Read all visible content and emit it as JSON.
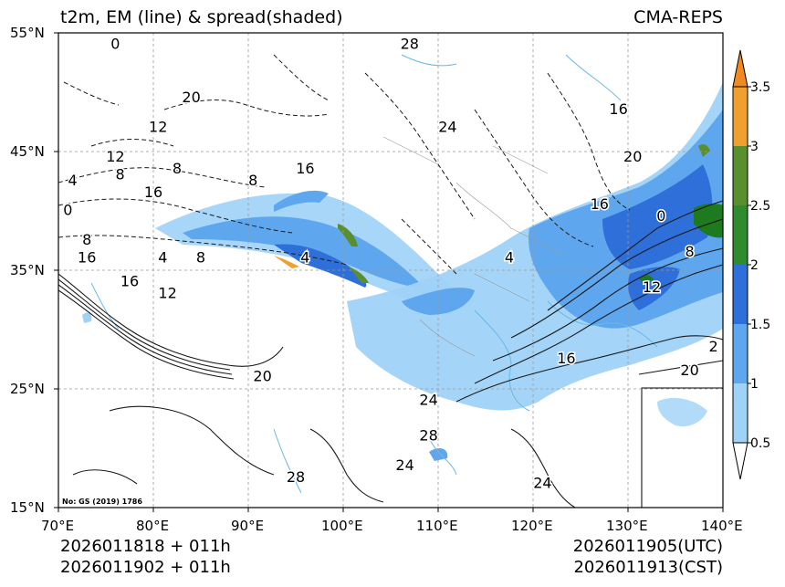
{
  "title": {
    "left": "t2m, EM (line) & spread(shaded)",
    "right": "CMA-REPS"
  },
  "axes": {
    "lat_labels": [
      "55°N",
      "45°N",
      "35°N",
      "25°N",
      "15°N"
    ],
    "lon_labels": [
      "70°E",
      "80°E",
      "90°E",
      "100°E",
      "110°E",
      "120°E",
      "130°E",
      "140°E"
    ],
    "lat_range": [
      15,
      55
    ],
    "lon_range": [
      70,
      140
    ]
  },
  "colorbar": {
    "ticks": [
      "0.5",
      "1",
      "1.5",
      "2",
      "2.5",
      "3",
      "3.5"
    ],
    "colors": [
      "#9fd2f7",
      "#5ea7ee",
      "#2f6fd9",
      "#1e7a1e",
      "#5a8f2e",
      "#f0a030",
      "#f08a20"
    ]
  },
  "contour_labels": [
    {
      "text": "0",
      "lon": 76,
      "lat": 54
    },
    {
      "text": "28",
      "lon": 107,
      "lat": 54
    },
    {
      "text": "20",
      "lon": 84,
      "lat": 49.5
    },
    {
      "text": "12",
      "lon": 80.5,
      "lat": 47
    },
    {
      "text": "24",
      "lon": 111,
      "lat": 47
    },
    {
      "text": "16",
      "lon": 129,
      "lat": 48.5
    },
    {
      "text": "12",
      "lon": 76,
      "lat": 44.5
    },
    {
      "text": "8",
      "lon": 76.5,
      "lat": 43
    },
    {
      "text": "4",
      "lon": 71.5,
      "lat": 42.5
    },
    {
      "text": "16",
      "lon": 80,
      "lat": 41.5
    },
    {
      "text": "8",
      "lon": 82.5,
      "lat": 43.5
    },
    {
      "text": "8",
      "lon": 90.5,
      "lat": 42.5
    },
    {
      "text": "16",
      "lon": 96,
      "lat": 43.5
    },
    {
      "text": "20",
      "lon": 130.5,
      "lat": 44.5
    },
    {
      "text": "0",
      "lon": 71,
      "lat": 40
    },
    {
      "text": "16",
      "lon": 127,
      "lat": 40.5
    },
    {
      "text": "0",
      "lon": 133.5,
      "lat": 39.5
    },
    {
      "text": "8",
      "lon": 73,
      "lat": 37.5
    },
    {
      "text": "16",
      "lon": 73,
      "lat": 36
    },
    {
      "text": "4",
      "lon": 81,
      "lat": 36
    },
    {
      "text": "8",
      "lon": 85,
      "lat": 36
    },
    {
      "text": "4",
      "lon": 96,
      "lat": 36
    },
    {
      "text": "4",
      "lon": 117.5,
      "lat": 36
    },
    {
      "text": "8",
      "lon": 136.5,
      "lat": 36.5
    },
    {
      "text": "16",
      "lon": 77.5,
      "lat": 34
    },
    {
      "text": "12",
      "lon": 81.5,
      "lat": 33
    },
    {
      "text": "12",
      "lon": 132.5,
      "lat": 33.5
    },
    {
      "text": "20",
      "lon": 91.5,
      "lat": 26
    },
    {
      "text": "16",
      "lon": 123.5,
      "lat": 27.5
    },
    {
      "text": "24",
      "lon": 109,
      "lat": 24
    },
    {
      "text": "20",
      "lon": 136.5,
      "lat": 26.5
    },
    {
      "text": "2",
      "lon": 139,
      "lat": 28.5
    },
    {
      "text": "28",
      "lon": 109,
      "lat": 21
    },
    {
      "text": "24",
      "lon": 106.5,
      "lat": 18.5
    },
    {
      "text": "28",
      "lon": 95,
      "lat": 17.5
    },
    {
      "text": "24",
      "lon": 121,
      "lat": 17
    }
  ],
  "credit": "No: GS (2019) 1786",
  "footer": {
    "left_line1": "2026011818  +  011h",
    "left_line2": "2026011902  +  011h",
    "right_line1": "2026011905(UTC)",
    "right_line2": "2026011913(CST)"
  }
}
